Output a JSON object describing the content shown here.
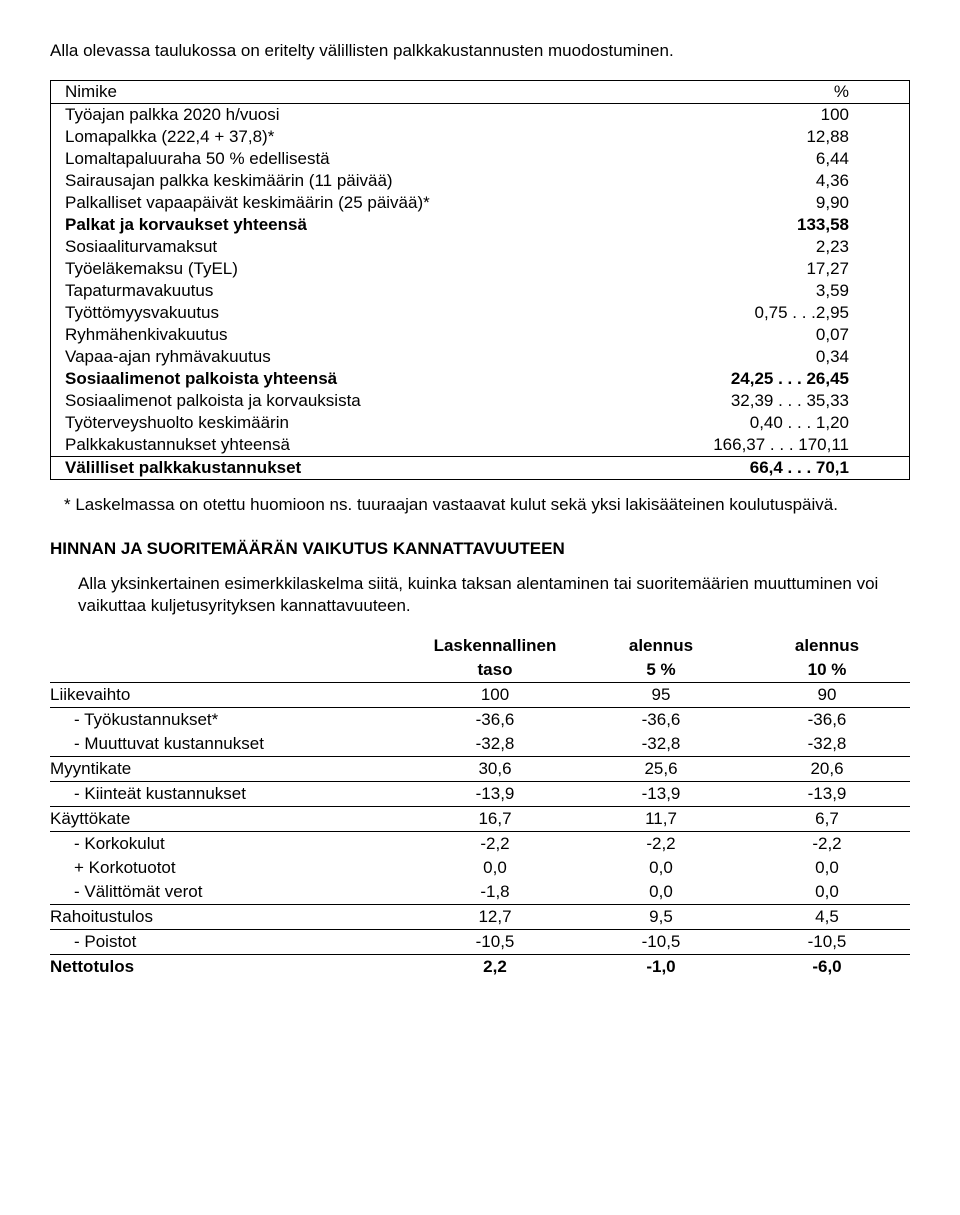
{
  "intro": "Alla olevassa taulukossa on eritelty välillisten palkkakustannusten muodostuminen.",
  "t1": {
    "h1": "Nimike",
    "h2": "%",
    "rows": [
      {
        "l": "Työajan palkka 2020 h/vuosi",
        "v": "100"
      },
      {
        "l": "Lomapalkka (222,4 + 37,8)*",
        "v": "12,88"
      },
      {
        "l": "Lomaltapaluuraha 50 % edellisestä",
        "v": "6,44"
      },
      {
        "l": "Sairausajan palkka keskimäärin (11 päivää)",
        "v": "4,36"
      },
      {
        "l": "Palkalliset vapaapäivät keskimäärin (25 päivää)*",
        "v": "9,90"
      },
      {
        "l": "Palkat ja korvaukset yhteensä",
        "v": "133,58",
        "bold": true
      },
      {
        "l": "Sosiaaliturvamaksut",
        "v": "2,23"
      },
      {
        "l": "Työeläkemaksu (TyEL)",
        "v": "17,27"
      },
      {
        "l": "Tapaturmavakuutus",
        "v": "3,59"
      },
      {
        "l": "Työttömyysvakuutus",
        "v": "0,75 . . .2,95"
      },
      {
        "l": "Ryhmähenkivakuutus",
        "v": "0,07"
      },
      {
        "l": "Vapaa-ajan ryhmävakuutus",
        "v": "0,34"
      },
      {
        "l": "Sosiaalimenot palkoista yhteensä",
        "v": "24,25 . . . 26,45",
        "bold": true
      },
      {
        "l": "Sosiaalimenot palkoista ja korvauksista",
        "v": "32,39 . . . 35,33"
      },
      {
        "l": "Työterveyshuolto keskimäärin",
        "v": "0,40 . . . 1,20"
      },
      {
        "l": "Palkkakustannukset yhteensä",
        "v": "166,37 . . . 170,11"
      },
      {
        "l": "Välilliset palkkakustannukset",
        "v": "66,4 . . . 70,1",
        "bold": true,
        "septop": true
      }
    ]
  },
  "note": "* Laskelmassa on otettu huomioon ns. tuuraajan vastaavat kulut sekä yksi lakisääteinen koulutuspäivä.",
  "h2": "HINNAN JA SUORITEMÄÄRÄN VAIKUTUS KANNATTAVUUTEEN",
  "para2": "Alla yksinkertainen esimerkkilaskelma siitä, kuinka taksan alentaminen tai suoritemäärien muuttuminen voi vaikuttaa kuljetusyrityksen kannattavuuteen.",
  "t2": {
    "h": [
      "",
      "Laskennallinen taso",
      "alennus 5 %",
      "alennus 10 %"
    ],
    "h1a": "Laskennallinen",
    "h1b": "taso",
    "h2a": "alennus",
    "h2b": "5 %",
    "h3a": "alennus",
    "h3b": "10 %",
    "rows": [
      {
        "l": "Liikevaihto",
        "c": [
          "100",
          "95",
          "90"
        ],
        "u": true
      },
      {
        "l": "- Työkustannukset*",
        "c": [
          "-36,6",
          "-36,6",
          "-36,6"
        ],
        "indent": true
      },
      {
        "l": "- Muuttuvat kustannukset",
        "c": [
          "-32,8",
          "-32,8",
          "-32,8"
        ],
        "indent": true,
        "u": true
      },
      {
        "l": "Myyntikate",
        "c": [
          "30,6",
          "25,6",
          "20,6"
        ],
        "u": true
      },
      {
        "l": "- Kiinteät kustannukset",
        "c": [
          "-13,9",
          "-13,9",
          "-13,9"
        ],
        "indent": true,
        "u": true
      },
      {
        "l": "Käyttökate",
        "c": [
          "16,7",
          "11,7",
          "6,7"
        ],
        "u": true
      },
      {
        "l": "- Korkokulut",
        "c": [
          "-2,2",
          "-2,2",
          "-2,2"
        ],
        "indent": true
      },
      {
        "l": "+ Korkotuotot",
        "c": [
          "0,0",
          "0,0",
          "0,0"
        ],
        "indent": true
      },
      {
        "l": "- Välittömät verot",
        "c": [
          "-1,8",
          "0,0",
          "0,0"
        ],
        "indent": true,
        "u": true
      },
      {
        "l": "Rahoitustulos",
        "c": [
          "12,7",
          "9,5",
          "4,5"
        ],
        "u": true
      },
      {
        "l": "- Poistot",
        "c": [
          "-10,5",
          "-10,5",
          "-10,5"
        ],
        "indent": true,
        "u": true
      },
      {
        "l": "Nettotulos",
        "c": [
          "2,2",
          "-1,0",
          "-6,0"
        ],
        "bold": true
      }
    ]
  }
}
